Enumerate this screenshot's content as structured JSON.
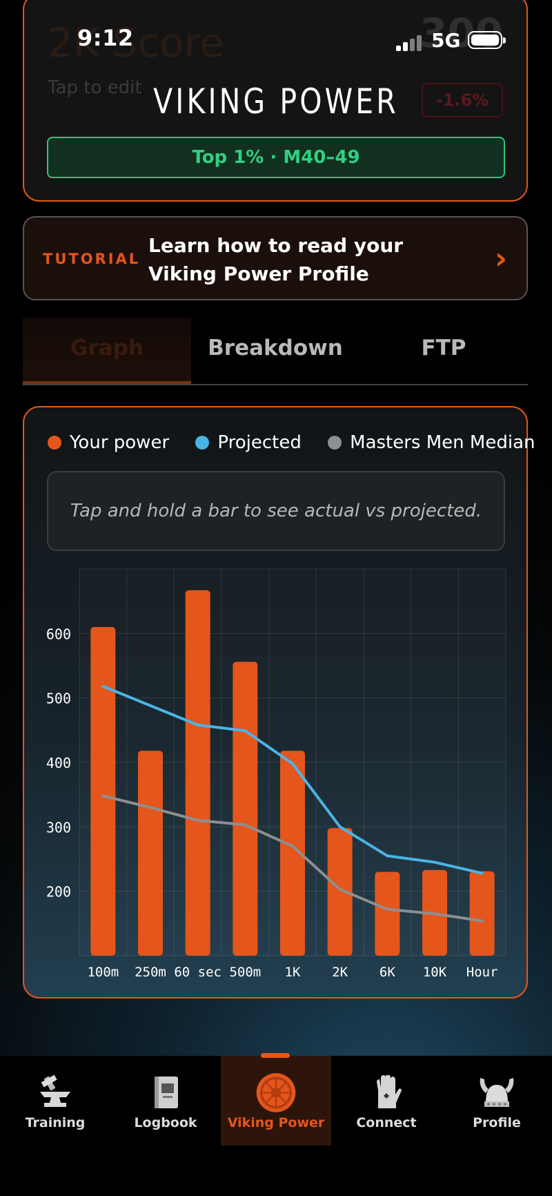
{
  "status": {
    "time": "9:12",
    "network": "5G"
  },
  "app": {
    "title": "VIKING POWER"
  },
  "score_card": {
    "label": "2K Score",
    "value": "300",
    "tap_hint": "Tap to edit",
    "change": "-1.6%",
    "rank": "Top 1% · M40–49"
  },
  "tutorial": {
    "tag": "TUTORIAL",
    "text": "Learn how to read your Viking Power Profile"
  },
  "tabs": [
    {
      "label": "Graph",
      "active": true
    },
    {
      "label": "Breakdown",
      "active": false
    },
    {
      "label": "FTP",
      "active": false
    }
  ],
  "chart_hint": "Tap and hold a bar to see actual vs projected.",
  "colors": {
    "accent": "#e4561c",
    "projected": "#4ab4e6",
    "median": "#8d8f91",
    "rank_green": "#2fd083"
  },
  "chart_data": {
    "type": "bar",
    "categories": [
      "100m",
      "250m",
      "60 sec",
      "500m",
      "1K",
      "2K",
      "6K",
      "10K",
      "Hour"
    ],
    "ylim": [
      0,
      700
    ],
    "yticks": [
      200,
      300,
      400,
      500,
      600
    ],
    "series": [
      {
        "name": "Your power",
        "kind": "bar",
        "color": "#e4561c",
        "values": [
          610,
          418,
          667,
          556,
          418,
          298,
          230,
          233,
          231
        ]
      },
      {
        "name": "Projected",
        "kind": "line",
        "color": "#4ab4e6",
        "values": [
          518,
          488,
          458,
          449,
          398,
          300,
          255,
          245,
          228
        ]
      },
      {
        "name": "Masters Men Median",
        "kind": "line",
        "color": "#8d8f91",
        "values": [
          348,
          330,
          310,
          303,
          270,
          203,
          172,
          165,
          154
        ]
      }
    ],
    "grid": true,
    "legend": "top"
  },
  "nav": [
    {
      "label": "Training",
      "icon": "anvil-icon",
      "active": false
    },
    {
      "label": "Logbook",
      "icon": "book-icon",
      "active": false
    },
    {
      "label": "Viking Power",
      "icon": "shield-icon",
      "active": true
    },
    {
      "label": "Connect",
      "icon": "gauntlet-icon",
      "active": false
    },
    {
      "label": "Profile",
      "icon": "viking-helmet-icon",
      "active": false
    }
  ]
}
